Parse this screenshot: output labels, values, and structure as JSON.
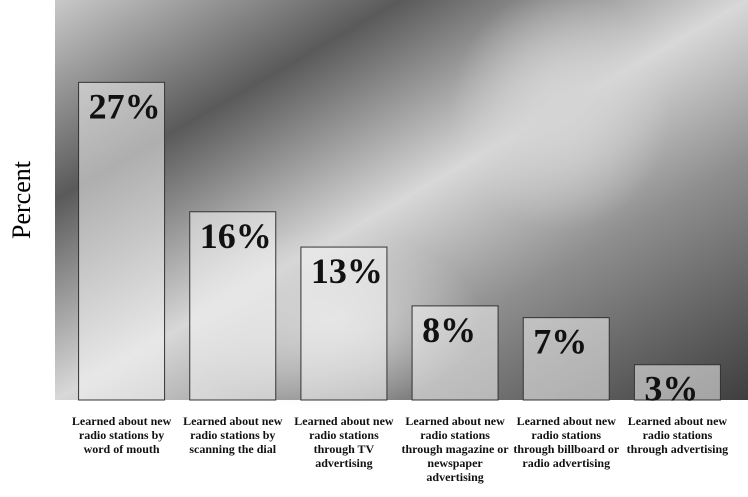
{
  "chart_data": {
    "type": "bar",
    "y_label": "Percent",
    "categories": [
      "Learned about new radio stations by word of mouth",
      "Learned about new radio stations by scanning the dial",
      "Learned about new radio stations through TV advertising",
      "Learned about new radio stations through magazine or newspaper advertising",
      "Learned about new radio stations through billboard or radio advertising",
      "Learned about new radio stations through advertising"
    ],
    "values": [
      27,
      16,
      13,
      8,
      7,
      3
    ],
    "value_labels": [
      "27%",
      "16%",
      "13%",
      "8%",
      "7%",
      "3%"
    ],
    "color": "#f4f4f4",
    "ylim": [
      0,
      34
    ]
  }
}
